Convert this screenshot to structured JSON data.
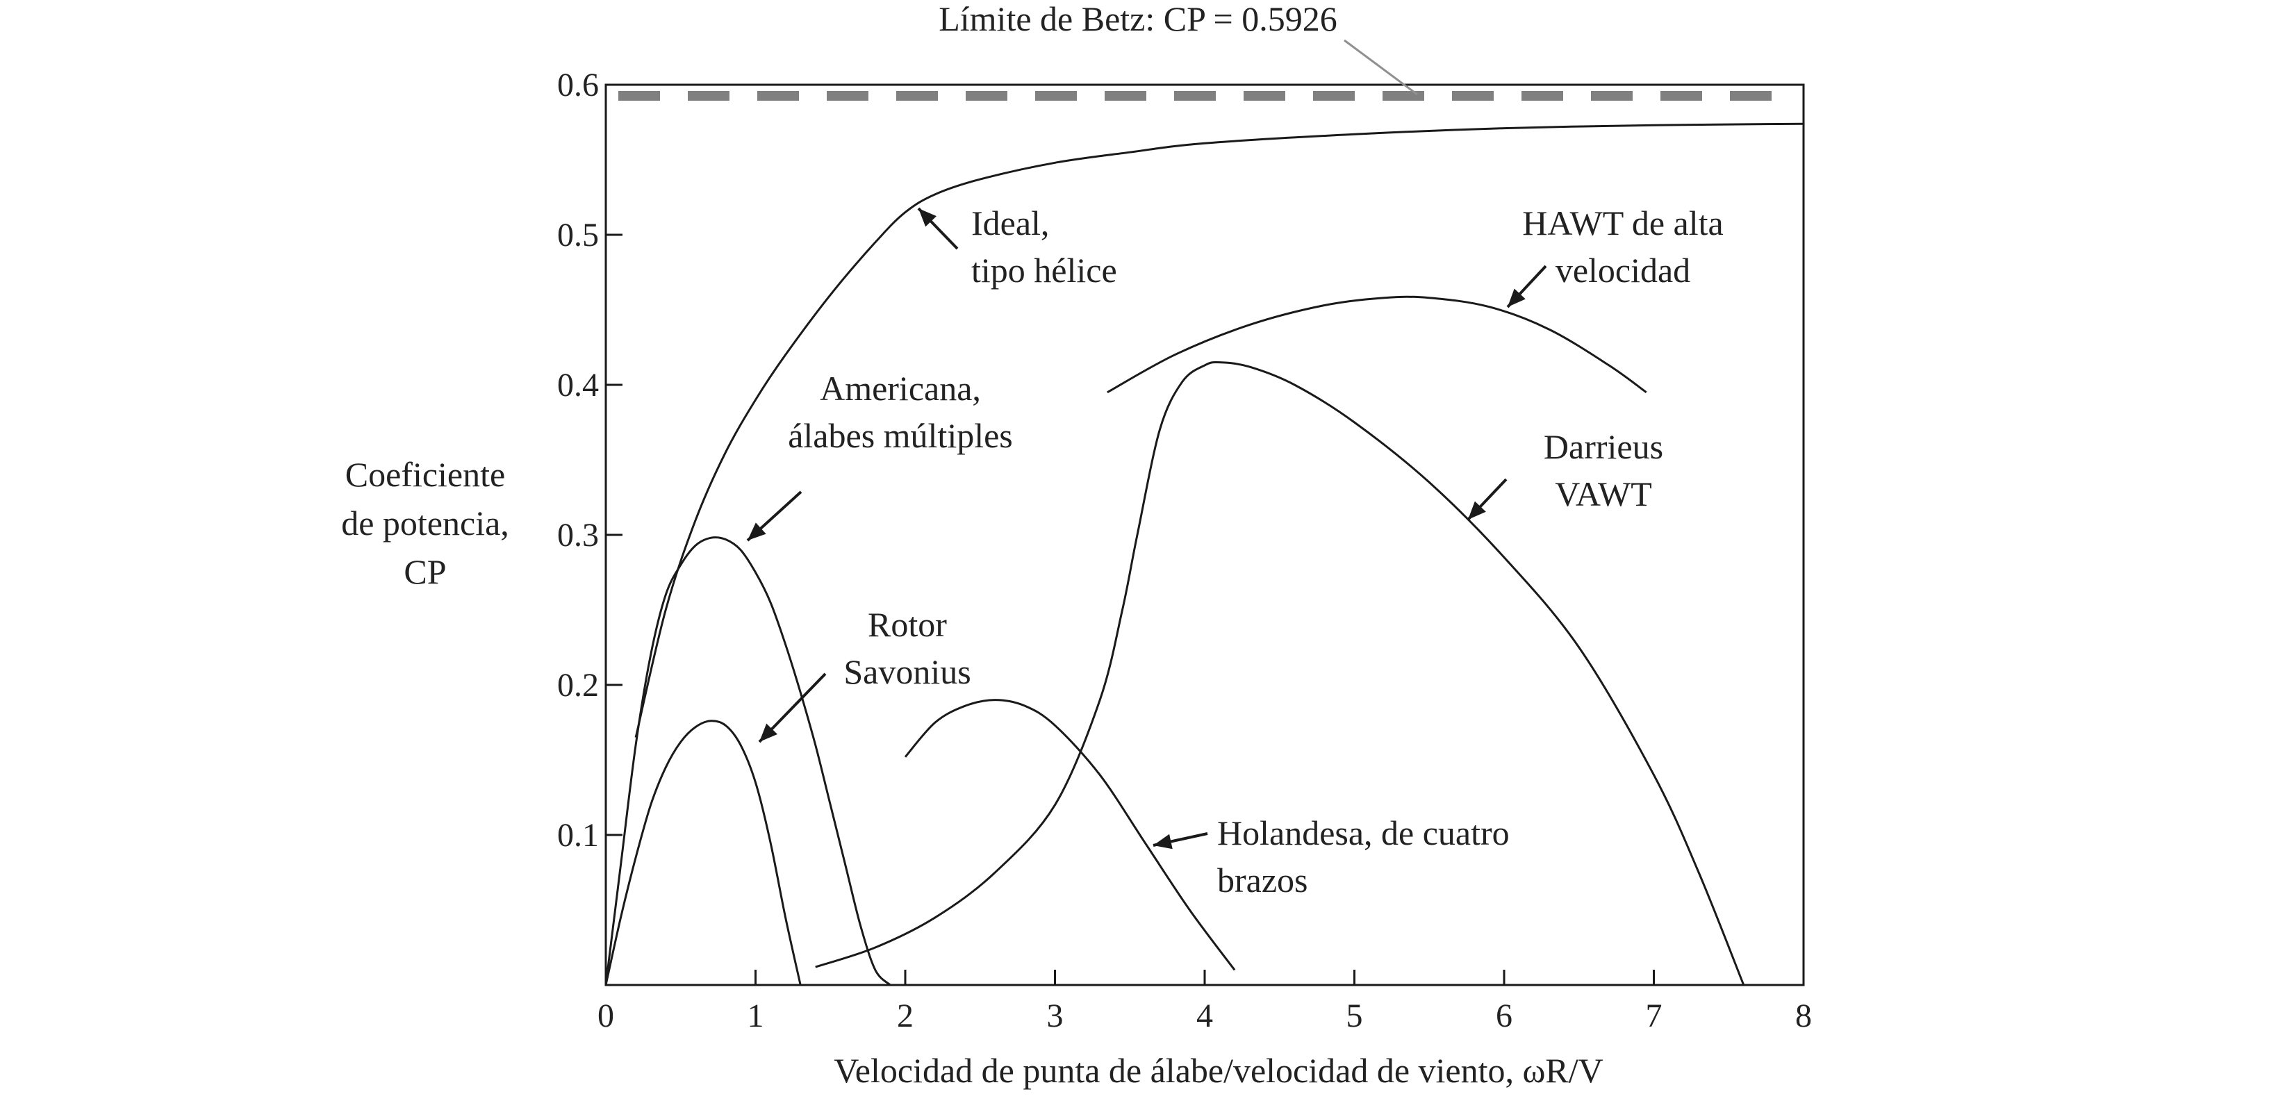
{
  "chart_data": {
    "type": "line",
    "title": "",
    "xlabel": "Velocidad de punta de álabe/velocidad de viento, ωR/V",
    "ylabel": [
      "Coeficiente",
      "de potencia,",
      "CP"
    ],
    "xlim": [
      0,
      8
    ],
    "ylim": [
      0,
      0.6
    ],
    "xticks": [
      "0",
      "1",
      "2",
      "3",
      "4",
      "5",
      "6",
      "7",
      "8"
    ],
    "yticks": [
      "0.1",
      "0.2",
      "0.3",
      "0.4",
      "0.5",
      "0.6"
    ],
    "grid": false,
    "legend": "none",
    "colors": {
      "curve": "#1a1a1a",
      "betz": "#808080",
      "text": "#222222"
    },
    "betz": {
      "label": "Límite de Betz: CP = 0.5926",
      "value": 0.5926
    },
    "series": [
      {
        "name": "Ideal, tipo hélice",
        "label_lines": [
          "Ideal,",
          "tipo hélice"
        ],
        "x": [
          0.2,
          0.4,
          0.6,
          0.8,
          1.0,
          1.2,
          1.5,
          1.8,
          2.0,
          2.2,
          2.5,
          3.0,
          3.5,
          4.0,
          5.0,
          6.0,
          7.0,
          8.0
        ],
        "y": [
          0.165,
          0.25,
          0.31,
          0.355,
          0.39,
          0.42,
          0.46,
          0.495,
          0.515,
          0.527,
          0.537,
          0.548,
          0.555,
          0.561,
          0.567,
          0.571,
          0.573,
          0.574
        ]
      },
      {
        "name": "HAWT de alta velocidad",
        "label_lines": [
          "HAWT de alta",
          "velocidad"
        ],
        "x": [
          3.35,
          3.8,
          4.3,
          4.8,
          5.2,
          5.5,
          5.9,
          6.3,
          6.7,
          6.95
        ],
        "y": [
          0.395,
          0.42,
          0.44,
          0.453,
          0.458,
          0.458,
          0.452,
          0.437,
          0.413,
          0.395
        ]
      },
      {
        "name": "Darrieus VAWT",
        "label_lines": [
          "Darrieus",
          "VAWT"
        ],
        "x": [
          1.4,
          1.8,
          2.2,
          2.6,
          3.0,
          3.3,
          3.45,
          3.55,
          3.7,
          3.85,
          4.0,
          4.1,
          4.3,
          4.6,
          5.0,
          5.5,
          6.0,
          6.5,
          7.0,
          7.3,
          7.6
        ],
        "y": [
          0.012,
          0.025,
          0.045,
          0.075,
          0.12,
          0.19,
          0.25,
          0.3,
          0.37,
          0.402,
          0.413,
          0.415,
          0.412,
          0.4,
          0.375,
          0.335,
          0.285,
          0.225,
          0.14,
          0.075,
          0.0
        ]
      },
      {
        "name": "Americana, álabes múltiples",
        "label_lines": [
          "Americana,",
          "álabes múltiples"
        ],
        "x": [
          0.0,
          0.1,
          0.2,
          0.3,
          0.4,
          0.5,
          0.6,
          0.7,
          0.8,
          0.9,
          1.0,
          1.1,
          1.2,
          1.3,
          1.4,
          1.5,
          1.6,
          1.7,
          1.8,
          1.9
        ],
        "y": [
          0.0,
          0.08,
          0.16,
          0.22,
          0.26,
          0.28,
          0.293,
          0.298,
          0.297,
          0.29,
          0.275,
          0.255,
          0.227,
          0.195,
          0.16,
          0.12,
          0.08,
          0.04,
          0.01,
          0.0
        ]
      },
      {
        "name": "Rotor Savonius",
        "label_lines": [
          "Rotor",
          "Savonius"
        ],
        "x": [
          0.0,
          0.1,
          0.2,
          0.3,
          0.4,
          0.5,
          0.6,
          0.7,
          0.8,
          0.9,
          1.0,
          1.1,
          1.2,
          1.3
        ],
        "y": [
          0.0,
          0.045,
          0.085,
          0.12,
          0.145,
          0.162,
          0.172,
          0.176,
          0.173,
          0.16,
          0.135,
          0.095,
          0.045,
          0.0
        ]
      },
      {
        "name": "Holandesa, de cuatro brazos",
        "label_lines": [
          "Holandesa, de cuatro",
          "brazos"
        ],
        "x": [
          2.0,
          2.2,
          2.4,
          2.6,
          2.8,
          3.0,
          3.3,
          3.6,
          3.9,
          4.2
        ],
        "y": [
          0.152,
          0.175,
          0.186,
          0.19,
          0.186,
          0.173,
          0.14,
          0.095,
          0.05,
          0.01
        ]
      }
    ]
  }
}
